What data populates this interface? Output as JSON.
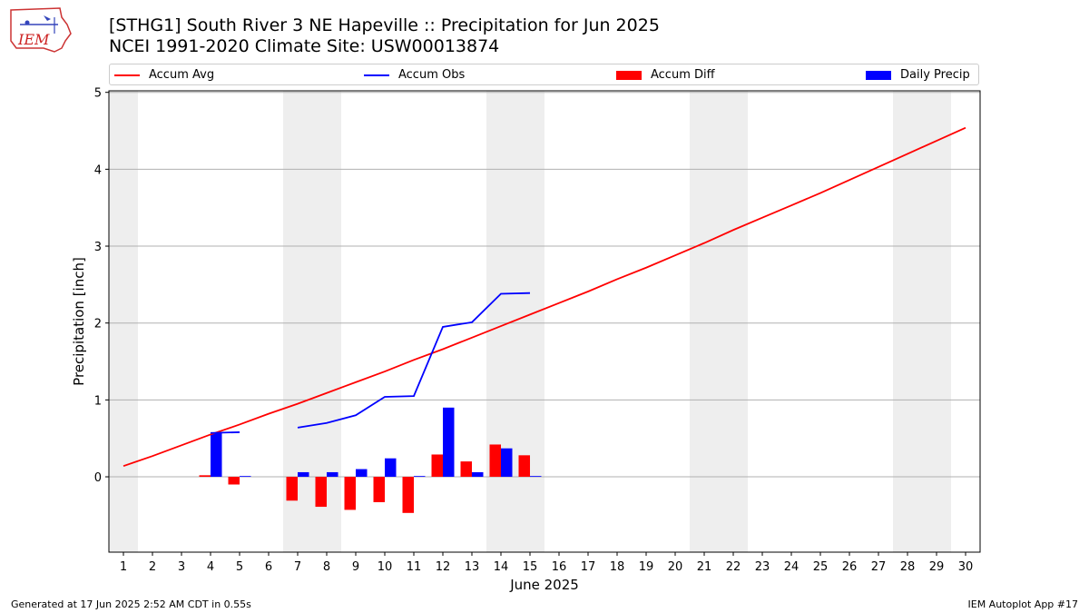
{
  "header": {
    "title": "[STHG1] South River 3 NE Hapeville :: Precipitation for Jun 2025",
    "subtitle": "NCEI 1991-2020 Climate Site: USW00013874",
    "logo_text": "IEM"
  },
  "footer": {
    "generated": "Generated at 17 Jun 2025 2:52 AM CDT in 0.55s",
    "app": "IEM Autoplot App #17"
  },
  "legend": {
    "accum_avg": "Accum Avg",
    "accum_obs": "Accum Obs",
    "accum_diff": "Accum Diff",
    "daily_precip": "Daily Precip"
  },
  "colors": {
    "accum_avg": "#ff0000",
    "accum_obs": "#0000ff",
    "accum_diff": "#ff0000",
    "daily_precip": "#0000ff",
    "weekend_band": "#eeeeee",
    "grid": "#b0b0b0"
  },
  "chart_data": {
    "type": "bar",
    "xlabel": "June 2025",
    "ylabel": "Precipitation [inch]",
    "xlim": [
      0.5,
      30.5
    ],
    "ylim": [
      -0.98,
      5.02
    ],
    "yticks": [
      0,
      1,
      2,
      3,
      4,
      5
    ],
    "x": [
      1,
      2,
      3,
      4,
      5,
      6,
      7,
      8,
      9,
      10,
      11,
      12,
      13,
      14,
      15,
      16,
      17,
      18,
      19,
      20,
      21,
      22,
      23,
      24,
      25,
      26,
      27,
      28,
      29,
      30
    ],
    "grid": "y",
    "weekend_bands": [
      [
        0.5,
        1.5
      ],
      [
        6.5,
        8.5
      ],
      [
        13.5,
        15.5
      ],
      [
        20.5,
        22.5
      ],
      [
        27.5,
        29.5
      ]
    ],
    "series": [
      {
        "name": "Accum Avg",
        "type": "line",
        "x": [
          1,
          2,
          3,
          4,
          5,
          6,
          7,
          8,
          9,
          10,
          11,
          12,
          13,
          14,
          15,
          16,
          17,
          18,
          19,
          20,
          21,
          22,
          23,
          24,
          25,
          26,
          27,
          28,
          29,
          30
        ],
        "values": [
          0.14,
          0.27,
          0.41,
          0.55,
          0.68,
          0.82,
          0.95,
          1.09,
          1.23,
          1.37,
          1.52,
          1.66,
          1.81,
          1.96,
          2.11,
          2.26,
          2.41,
          2.57,
          2.72,
          2.88,
          3.04,
          3.21,
          3.37,
          3.53,
          3.69,
          3.86,
          4.03,
          4.2,
          4.37,
          4.54
        ]
      },
      {
        "name": "Accum Obs",
        "type": "line",
        "x": [
          4,
          5,
          7,
          8,
          9,
          10,
          11,
          12,
          13,
          14,
          15
        ],
        "values": [
          0.57,
          0.58,
          0.64,
          0.7,
          0.8,
          1.04,
          1.05,
          1.95,
          2.01,
          2.38,
          2.39
        ]
      },
      {
        "name": "Accum Diff",
        "type": "bar",
        "x": [
          4,
          5,
          7,
          8,
          9,
          10,
          11,
          12,
          13,
          14,
          15
        ],
        "values": [
          0.02,
          -0.1,
          -0.31,
          -0.39,
          -0.43,
          -0.33,
          -0.47,
          0.29,
          0.2,
          0.42,
          0.28
        ]
      },
      {
        "name": "Daily Precip",
        "type": "bar",
        "x": [
          4,
          5,
          7,
          8,
          9,
          10,
          11,
          12,
          13,
          14,
          15
        ],
        "values": [
          0.57,
          0.01,
          0.06,
          0.06,
          0.1,
          0.24,
          0.01,
          0.9,
          0.06,
          0.37,
          0.01
        ]
      }
    ]
  }
}
